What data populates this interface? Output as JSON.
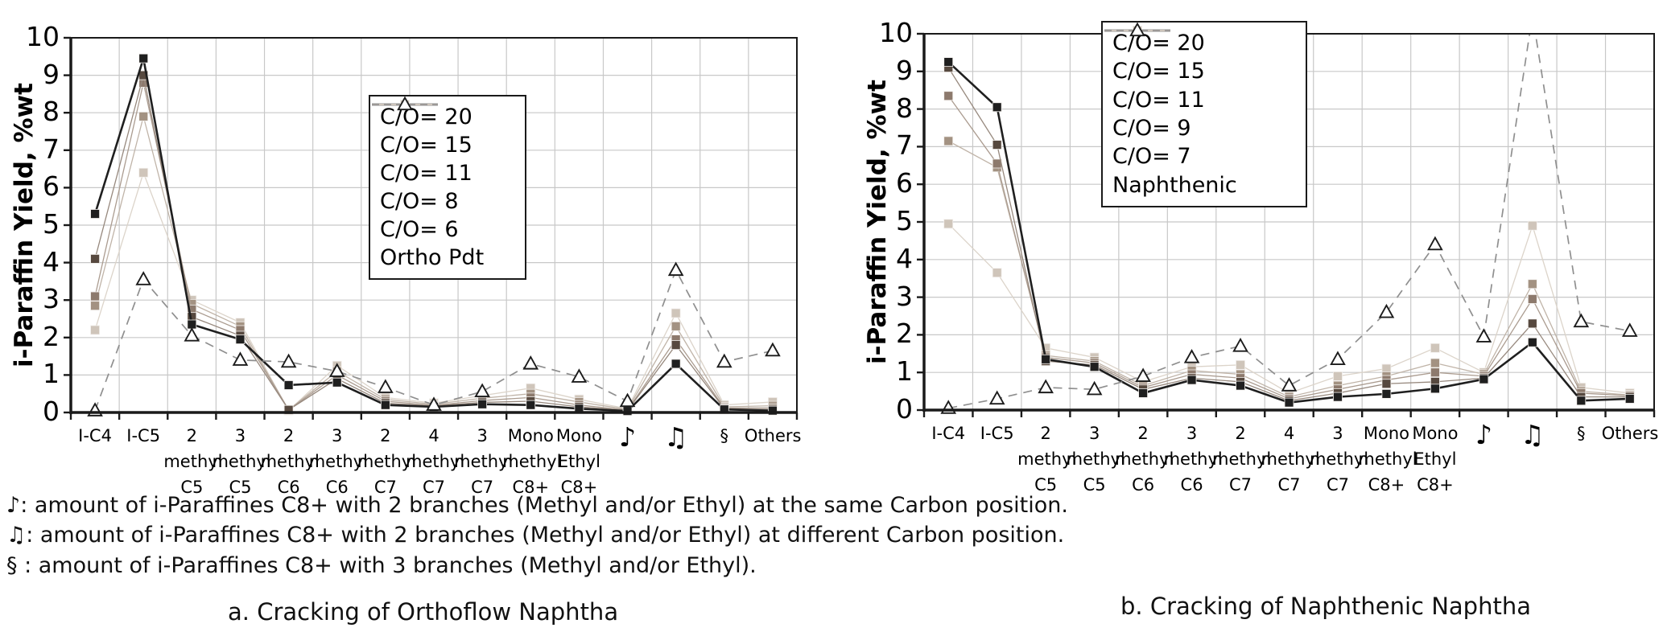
{
  "figure": {
    "background": "#ffffff",
    "captions": {
      "a": "a. Cracking of Orthoflow Naphtha",
      "b": "b. Cracking of Naphthenic Naphtha"
    },
    "footnotes": [
      "♪: amount of i-Paraffines C8+ with 2 branches (Methyl and/or Ethyl) at the same Carbon position.",
      "♫: amount of i-Paraffines C8+ with 2 branches (Methyl and/or Ethyl) at different Carbon position.",
      "§ : amount of i-Paraffines C8+ with 3 branches (Methyl and/or Ethyl)."
    ],
    "grid_color": "#c8c8c8",
    "axis_color": "#1a1a1a"
  },
  "chart_data": [
    {
      "type": "line",
      "caption": "a. Cracking of Orthoflow Naphtha",
      "ylabel": "i-Paraffin Yield, %wt",
      "ylim": [
        0,
        10
      ],
      "ytick_step": 1,
      "grid": true,
      "legend_position": "inside top-right",
      "categories": [
        [
          "I-C4"
        ],
        [
          "I-C5"
        ],
        [
          "2",
          "methyl",
          "C5"
        ],
        [
          "3",
          "methyl",
          "C5"
        ],
        [
          "2",
          "methyl",
          "C6"
        ],
        [
          "3",
          "methyl",
          "C6"
        ],
        [
          "2",
          "methyl",
          "C7"
        ],
        [
          "4",
          "methyl",
          "C7"
        ],
        [
          "3",
          "methyl",
          "C7"
        ],
        [
          "Mono",
          "methyl",
          "C8+"
        ],
        [
          "Mono",
          "Ethyl",
          "C8+"
        ],
        [
          "♪"
        ],
        [
          "♫"
        ],
        [
          "§"
        ],
        [
          "Others"
        ]
      ],
      "series": [
        {
          "name": "C/O= 20",
          "marker": "square",
          "line": "solid",
          "color": "#1f1f1f",
          "line_color": "#1f1f1f",
          "values": [
            5.3,
            9.45,
            2.35,
            1.95,
            0.73,
            0.8,
            0.2,
            0.15,
            0.22,
            0.2,
            0.1,
            0.04,
            1.3,
            0.08,
            0.05
          ]
        },
        {
          "name": "C/O= 15",
          "marker": "square",
          "line": "solid",
          "color": "#57493f",
          "line_color": "#97897e",
          "values": [
            4.1,
            9.0,
            2.55,
            2.05,
            0.07,
            0.9,
            0.25,
            0.17,
            0.27,
            0.3,
            0.15,
            0.05,
            1.8,
            0.1,
            0.08
          ]
        },
        {
          "name": "C/O= 11",
          "marker": "square",
          "line": "solid",
          "color": "#8d7a6d",
          "line_color": "#ab9c90",
          "values": [
            3.1,
            8.8,
            2.75,
            2.2,
            0.07,
            1.0,
            0.3,
            0.19,
            0.32,
            0.4,
            0.2,
            0.06,
            1.95,
            0.12,
            0.12
          ]
        },
        {
          "name": "C/O= 8",
          "marker": "square",
          "line": "solid",
          "color": "#a39282",
          "line_color": "#c0b4a8",
          "values": [
            2.85,
            7.9,
            2.9,
            2.3,
            0.07,
            1.1,
            0.35,
            0.22,
            0.38,
            0.5,
            0.28,
            0.08,
            2.3,
            0.15,
            0.18
          ]
        },
        {
          "name": "C/O= 6",
          "marker": "square",
          "line": "solid",
          "color": "#cfc5ba",
          "line_color": "#dcd4ca",
          "values": [
            2.2,
            6.4,
            3.0,
            2.4,
            0.05,
            1.25,
            0.4,
            0.25,
            0.45,
            0.65,
            0.35,
            0.1,
            2.65,
            0.2,
            0.28
          ]
        },
        {
          "name": "Ortho Pdt",
          "marker": "triangle-open",
          "line": "dashed",
          "color": "#ffffff",
          "edge_color": "#1c1c1c",
          "line_color": "#8f8f8f",
          "values": [
            0.05,
            3.55,
            2.05,
            1.4,
            1.35,
            1.1,
            0.67,
            0.2,
            0.56,
            1.3,
            0.95,
            0.3,
            3.8,
            1.35,
            1.65
          ]
        }
      ]
    },
    {
      "type": "line",
      "caption": "b. Cracking of Naphthenic Naphtha",
      "ylabel": "i-Paraffin Yield, %wt",
      "ylim": [
        0,
        10
      ],
      "ytick_step": 1,
      "grid": true,
      "legend_position": "inside top-right",
      "categories": [
        [
          "I-C4"
        ],
        [
          "I-C5"
        ],
        [
          "2",
          "methyl",
          "C5"
        ],
        [
          "3",
          "methyl",
          "C5"
        ],
        [
          "2",
          "methyl",
          "C6"
        ],
        [
          "3",
          "methyl",
          "C6"
        ],
        [
          "2",
          "methyl",
          "C7"
        ],
        [
          "4",
          "methyl",
          "C7"
        ],
        [
          "3",
          "methyl",
          "C7"
        ],
        [
          "Mono",
          "methyl",
          "C8+"
        ],
        [
          "Mono",
          "Ethyl",
          "C8+"
        ],
        [
          "♪"
        ],
        [
          "♫"
        ],
        [
          "§"
        ],
        [
          "Others"
        ]
      ],
      "series": [
        {
          "name": "C/O= 20",
          "marker": "square",
          "line": "solid",
          "color": "#1f1f1f",
          "line_color": "#1f1f1f",
          "values": [
            9.25,
            8.05,
            1.35,
            1.15,
            0.45,
            0.8,
            0.65,
            0.2,
            0.35,
            0.43,
            0.57,
            0.82,
            1.8,
            0.25,
            0.3
          ]
        },
        {
          "name": "C/O= 15",
          "marker": "square",
          "line": "solid",
          "color": "#57493f",
          "line_color": "#97897e",
          "values": [
            9.1,
            7.05,
            1.3,
            1.2,
            0.55,
            0.85,
            0.75,
            0.25,
            0.45,
            0.7,
            0.75,
            0.85,
            2.3,
            0.35,
            0.35
          ]
        },
        {
          "name": "C/O= 11",
          "marker": "square",
          "line": "solid",
          "color": "#8d7a6d",
          "line_color": "#ab9c90",
          "values": [
            8.35,
            6.55,
            1.4,
            1.25,
            0.6,
            0.95,
            0.85,
            0.3,
            0.55,
            0.8,
            1.0,
            0.9,
            2.95,
            0.45,
            0.38
          ]
        },
        {
          "name": "C/O= 9",
          "marker": "square",
          "line": "solid",
          "color": "#a39282",
          "line_color": "#c0b4a8",
          "values": [
            7.15,
            6.45,
            1.45,
            1.3,
            0.65,
            1.05,
            0.95,
            0.35,
            0.65,
            0.9,
            1.25,
            0.95,
            3.35,
            0.5,
            0.4
          ]
        },
        {
          "name": "C/O= 7",
          "marker": "square",
          "line": "solid",
          "color": "#cfc5ba",
          "line_color": "#dcd4ca",
          "values": [
            4.95,
            3.65,
            1.65,
            1.4,
            0.75,
            1.15,
            1.2,
            0.45,
            0.9,
            1.1,
            1.65,
            1.0,
            4.9,
            0.6,
            0.45
          ]
        },
        {
          "name": "Naphthenic",
          "marker": "triangle-open",
          "line": "dashed",
          "color": "#ffffff",
          "edge_color": "#1c1c1c",
          "line_color": "#8f8f8f",
          "values": [
            0.05,
            0.3,
            0.6,
            0.55,
            0.9,
            1.4,
            1.7,
            0.65,
            1.35,
            2.6,
            4.4,
            1.95,
            10.5,
            2.35,
            2.1
          ]
        }
      ]
    }
  ]
}
